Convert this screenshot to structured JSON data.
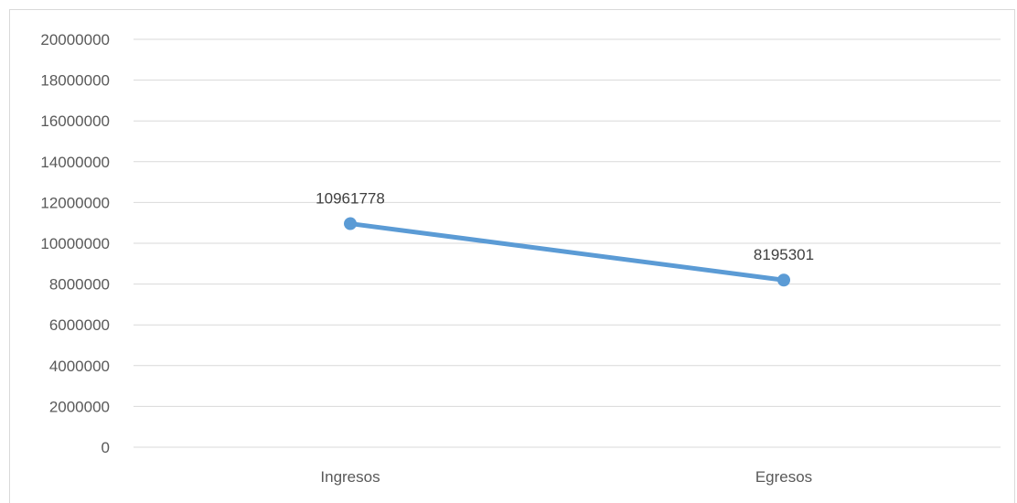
{
  "chart_data": {
    "type": "line",
    "categories": [
      "Ingresos",
      "Egresos"
    ],
    "series": [
      {
        "values": [
          10961778,
          8195301
        ],
        "color": "#5b9bd5",
        "data_labels": [
          "10961778",
          "8195301"
        ]
      }
    ],
    "ylim": [
      0,
      20000000
    ],
    "y_ticks": [
      "0",
      "2000000",
      "4000000",
      "6000000",
      "8000000",
      "10000000",
      "12000000",
      "14000000",
      "16000000",
      "18000000",
      "20000000"
    ],
    "grid": true,
    "gridline_color": "#d9d9d9",
    "label_color": "#595959"
  }
}
